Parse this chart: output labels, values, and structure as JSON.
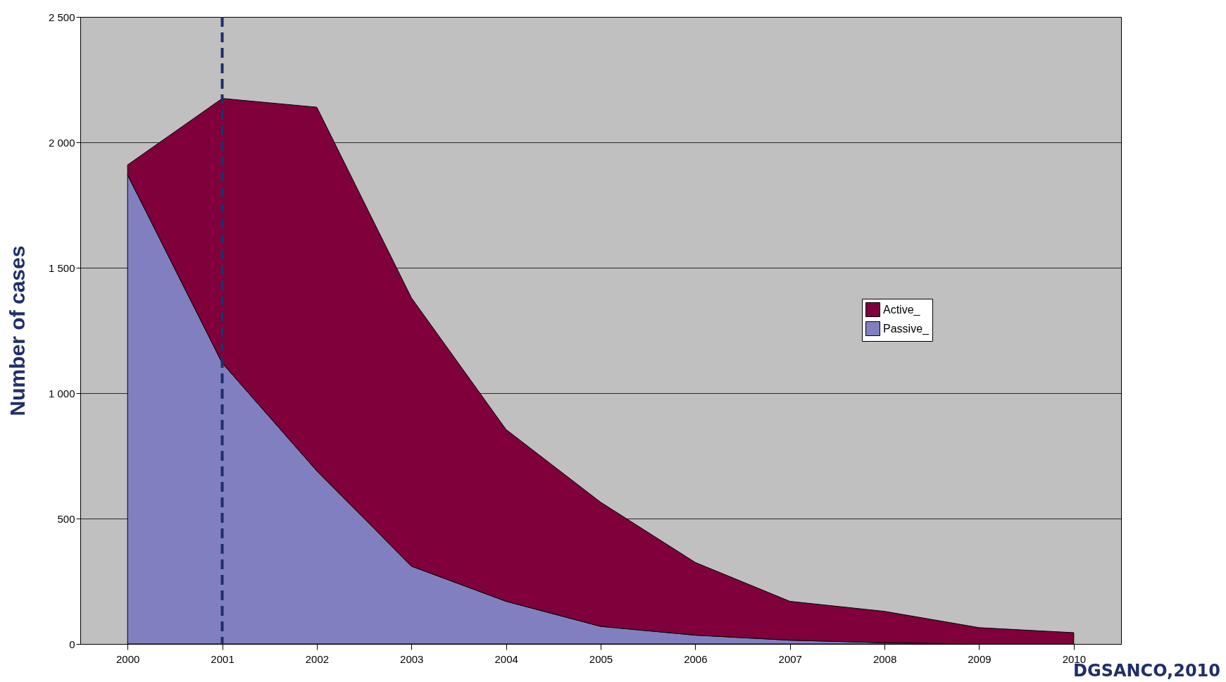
{
  "chart_data": {
    "type": "area",
    "stacked": true,
    "ylabel": "Number of cases",
    "categories": [
      "2000",
      "2001",
      "2002",
      "2003",
      "2004",
      "2005",
      "2006",
      "2007",
      "2008",
      "2009",
      "2010"
    ],
    "series": [
      {
        "name": "Passive_",
        "color": "#8080c0",
        "values": [
          1870,
          1120,
          690,
          310,
          170,
          70,
          35,
          15,
          5,
          0,
          0
        ]
      },
      {
        "name": "Active_",
        "color": "#7f003b",
        "values": [
          40,
          1055,
          1450,
          1070,
          685,
          495,
          290,
          155,
          125,
          65,
          45
        ]
      }
    ],
    "ylim": [
      0,
      2500
    ],
    "yticks": [
      0,
      500,
      {
        "value": 1000,
        "label": "1 000"
      },
      {
        "value": 1500,
        "label": "1 500"
      },
      {
        "value": 2000,
        "label": "2 000"
      },
      {
        "value": 2500,
        "label": "2 500"
      }
    ],
    "grid": "y",
    "legend": "right",
    "ref_lines": [
      {
        "axis": "x",
        "value": "2001",
        "color": "#1f2f6b",
        "line_style": "dashed"
      }
    ],
    "annotations": [
      "DGSANCO,2010"
    ]
  }
}
